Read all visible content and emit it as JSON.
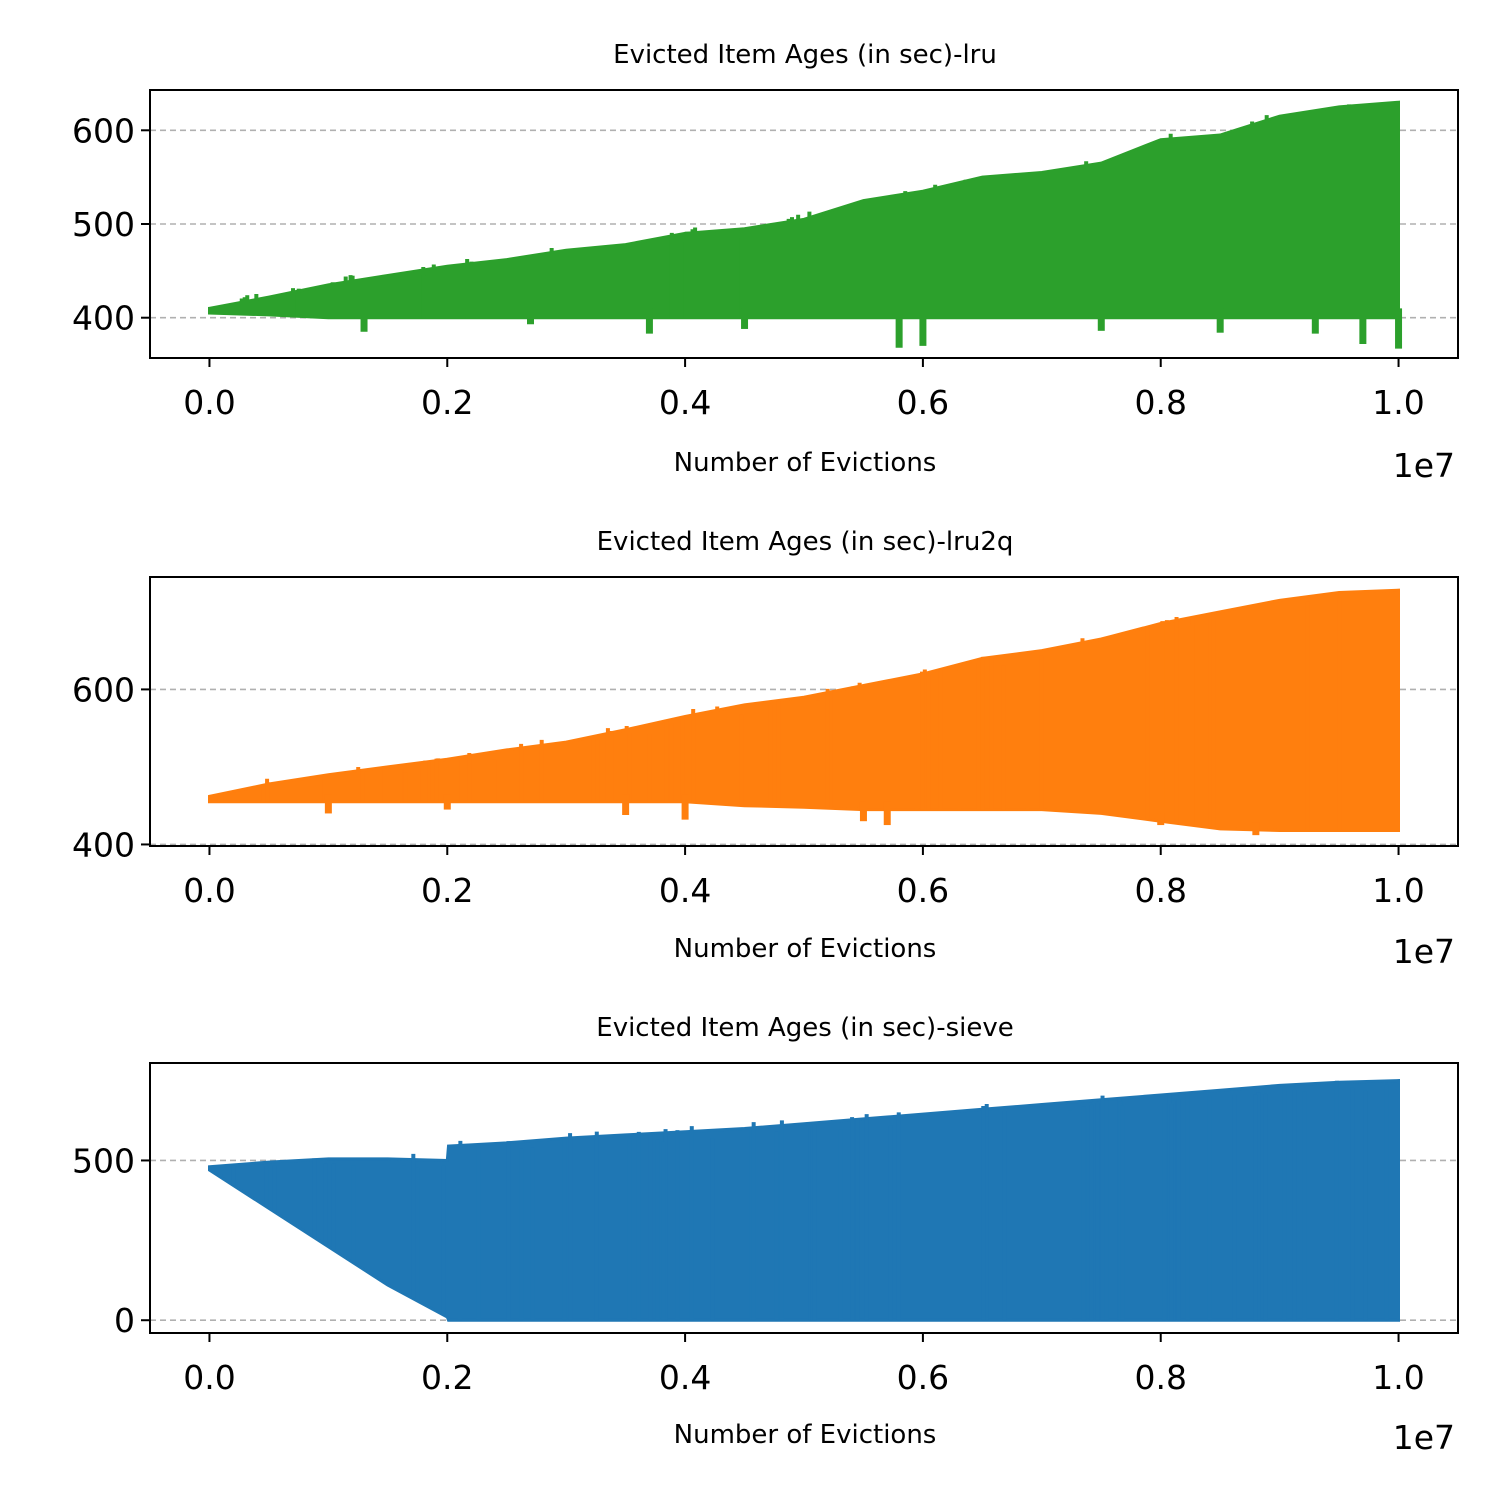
{
  "figure": {
    "background": "#ffffff",
    "grid_color": "#b0b0b0"
  },
  "chart_data": [
    {
      "type": "area",
      "title": "Evicted Item Ages (in sec)-lru",
      "xlabel": "Number of Evictions",
      "ylabel": "",
      "x_offset_label": "1e7",
      "color": "#2ca02c",
      "xlim": [
        -0.05,
        1.05
      ],
      "ylim": [
        357,
        643
      ],
      "xticks": [
        0.0,
        0.2,
        0.4,
        0.6,
        0.8,
        1.0
      ],
      "xtick_labels": [
        "0.0",
        "0.2",
        "0.4",
        "0.6",
        "0.8",
        "1.0"
      ],
      "yticks": [
        400,
        500,
        600
      ],
      "ytick_labels": [
        "400",
        "500",
        "600"
      ],
      "grid": "y-dashed",
      "series": [
        {
          "x": [
            0.0,
            0.05,
            0.1,
            0.15,
            0.2,
            0.25,
            0.3,
            0.35,
            0.4,
            0.45,
            0.5,
            0.55,
            0.6,
            0.65,
            0.7,
            0.75,
            0.8,
            0.85,
            0.9,
            0.95,
            1.0
          ],
          "upper": [
            410,
            422,
            435,
            445,
            455,
            462,
            472,
            478,
            490,
            495,
            505,
            525,
            535,
            550,
            555,
            565,
            590,
            595,
            615,
            625,
            630
          ],
          "lower": [
            405,
            403,
            400,
            400,
            400,
            400,
            400,
            400,
            400,
            400,
            400,
            400,
            400,
            400,
            400,
            400,
            400,
            400,
            400,
            400,
            400
          ],
          "dips": [
            {
              "x": 0.13,
              "y": 385
            },
            {
              "x": 0.27,
              "y": 393
            },
            {
              "x": 0.37,
              "y": 383
            },
            {
              "x": 0.45,
              "y": 388
            },
            {
              "x": 0.58,
              "y": 368
            },
            {
              "x": 0.6,
              "y": 370
            },
            {
              "x": 0.75,
              "y": 386
            },
            {
              "x": 0.85,
              "y": 384
            },
            {
              "x": 0.93,
              "y": 383
            },
            {
              "x": 0.97,
              "y": 372
            },
            {
              "x": 1.0,
              "y": 367
            }
          ]
        }
      ]
    },
    {
      "type": "area",
      "title": "Evicted Item Ages (in sec)-lru2q",
      "xlabel": "Number of Evictions",
      "ylabel": "",
      "x_offset_label": "1e7",
      "color": "#ff7f0e",
      "xlim": [
        -0.05,
        1.05
      ],
      "ylim": [
        398,
        745
      ],
      "xticks": [
        0.0,
        0.2,
        0.4,
        0.6,
        0.8,
        1.0
      ],
      "xtick_labels": [
        "0.0",
        "0.2",
        "0.4",
        "0.6",
        "0.8",
        "1.0"
      ],
      "yticks": [
        400,
        600
      ],
      "ytick_labels": [
        "400",
        "600"
      ],
      "grid": "y-dashed",
      "series": [
        {
          "x": [
            0.0,
            0.05,
            0.1,
            0.15,
            0.2,
            0.25,
            0.3,
            0.35,
            0.4,
            0.45,
            0.5,
            0.55,
            0.6,
            0.65,
            0.7,
            0.75,
            0.8,
            0.85,
            0.9,
            0.95,
            1.0
          ],
          "upper": [
            462,
            478,
            490,
            500,
            510,
            522,
            532,
            548,
            565,
            580,
            590,
            605,
            620,
            640,
            650,
            665,
            685,
            700,
            715,
            725,
            728
          ],
          "lower": [
            455,
            455,
            455,
            455,
            455,
            455,
            455,
            455,
            455,
            450,
            448,
            445,
            445,
            445,
            445,
            440,
            430,
            420,
            418,
            418,
            418
          ],
          "dips": [
            {
              "x": 0.1,
              "y": 440
            },
            {
              "x": 0.2,
              "y": 445
            },
            {
              "x": 0.35,
              "y": 438
            },
            {
              "x": 0.4,
              "y": 432
            },
            {
              "x": 0.55,
              "y": 430
            },
            {
              "x": 0.57,
              "y": 425
            },
            {
              "x": 0.8,
              "y": 425
            },
            {
              "x": 0.88,
              "y": 412
            }
          ]
        }
      ]
    },
    {
      "type": "area",
      "title": "Evicted Item Ages (in sec)-sieve",
      "xlabel": "Number of Evictions",
      "ylabel": "",
      "x_offset_label": "1e7",
      "color": "#1f77b4",
      "xlim": [
        -0.05,
        1.05
      ],
      "ylim": [
        -40,
        805
      ],
      "xticks": [
        0.0,
        0.2,
        0.4,
        0.6,
        0.8,
        1.0
      ],
      "xtick_labels": [
        "0.0",
        "0.2",
        "0.4",
        "0.6",
        "0.8",
        "1.0"
      ],
      "yticks": [
        0,
        500
      ],
      "ytick_labels": [
        "0",
        "500"
      ],
      "grid": "y-dashed",
      "series": [
        {
          "x": [
            0.0,
            0.05,
            0.1,
            0.15,
            0.2,
            0.201,
            0.25,
            0.3,
            0.35,
            0.4,
            0.45,
            0.5,
            0.55,
            0.6,
            0.65,
            0.7,
            0.75,
            0.8,
            0.85,
            0.9,
            0.95,
            1.0
          ],
          "upper": [
            480,
            495,
            505,
            505,
            500,
            545,
            555,
            570,
            580,
            590,
            600,
            615,
            630,
            645,
            660,
            675,
            690,
            705,
            720,
            735,
            745,
            750
          ],
          "lower": [
            470,
            350,
            230,
            110,
            10,
            0,
            0,
            0,
            0,
            0,
            0,
            0,
            0,
            0,
            0,
            0,
            0,
            0,
            0,
            0,
            0,
            0
          ],
          "dips": []
        }
      ]
    }
  ]
}
